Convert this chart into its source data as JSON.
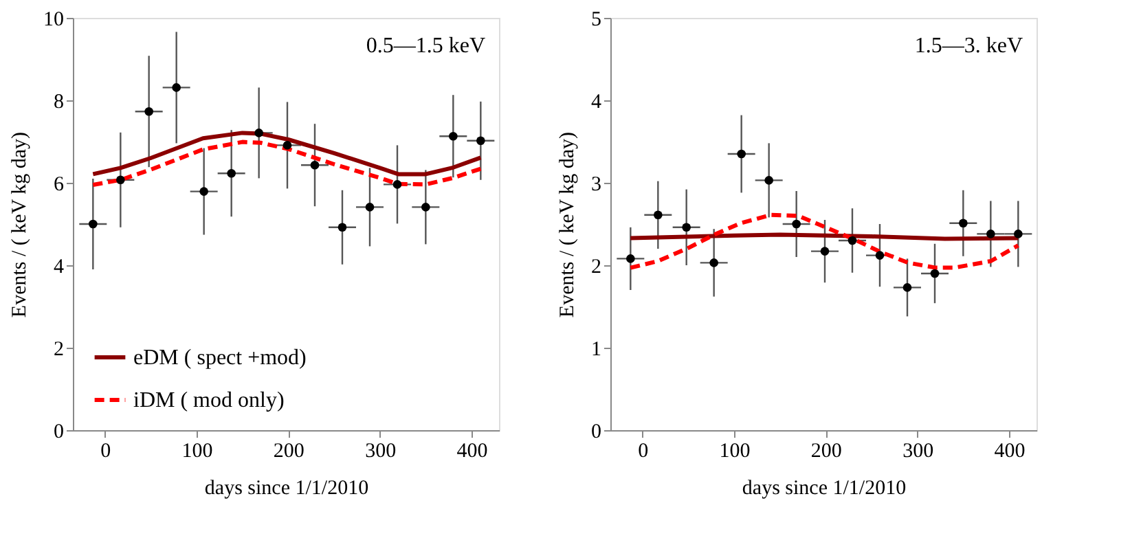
{
  "chart_data": [
    {
      "type": "scatter",
      "xlabel": "days since 1/1/2010",
      "ylabel": "Events / ( keV kg day)",
      "annotations": [
        "0.5—1.5 keV"
      ],
      "xlim": [
        -35,
        430
      ],
      "xticks": [
        0,
        100,
        200,
        300,
        400
      ],
      "ylim": [
        0,
        10
      ],
      "yticks": [
        0,
        2,
        4,
        6,
        8,
        10
      ],
      "grid": false,
      "legend": "bottom left",
      "x": [
        -13,
        17,
        48,
        78,
        108,
        138,
        168,
        199,
        229,
        259,
        289,
        319,
        350,
        380,
        410
      ],
      "series": [
        {
          "marker": "circle",
          "color": "#000000",
          "values": [
            5.0,
            6.07,
            7.73,
            8.31,
            5.79,
            6.23,
            7.21,
            6.91,
            6.43,
            4.92,
            5.41,
            5.96,
            5.41,
            7.13,
            7.02
          ],
          "errors": [
            1.1,
            1.15,
            1.35,
            1.35,
            1.05,
            1.05,
            1.1,
            1.05,
            1.0,
            0.9,
            0.95,
            0.95,
            0.9,
            1.0,
            0.95
          ],
          "xerrors": [
            15,
            15,
            15,
            15,
            15,
            15,
            15,
            15,
            15,
            15,
            15,
            15,
            15,
            15,
            15
          ]
        },
        {
          "type": "line",
          "name": "eDM ( spect +mod)",
          "color": "#8b0000",
          "line_style": "solid",
          "x": [
            -13,
            17,
            50,
            107,
            150,
            170,
            200,
            250,
            300,
            320,
            350,
            380,
            410
          ],
          "values": [
            6.21,
            6.36,
            6.6,
            7.08,
            7.21,
            7.19,
            7.05,
            6.72,
            6.36,
            6.21,
            6.21,
            6.37,
            6.61
          ]
        },
        {
          "type": "line",
          "name": "iDM ( mod only)",
          "color": "#ff0000",
          "line_style": "dashed",
          "x": [
            -13,
            17,
            50,
            107,
            150,
            170,
            200,
            250,
            300,
            320,
            350,
            380,
            410
          ],
          "values": [
            5.95,
            6.07,
            6.32,
            6.81,
            6.99,
            6.97,
            6.82,
            6.45,
            6.12,
            5.97,
            5.96,
            6.12,
            6.34
          ]
        }
      ]
    },
    {
      "type": "scatter",
      "xlabel": "days since 1/1/2010",
      "ylabel": "Events / ( keV kg day)",
      "annotations": [
        "1.5—3. keV"
      ],
      "xlim": [
        -35,
        430
      ],
      "xticks": [
        0,
        100,
        200,
        300,
        400
      ],
      "ylim": [
        0,
        5
      ],
      "yticks": [
        0,
        1,
        2,
        3,
        4,
        5
      ],
      "grid": false,
      "x": [
        -13,
        17,
        48,
        78,
        108,
        138,
        168,
        199,
        229,
        259,
        289,
        319,
        350,
        380,
        410
      ],
      "series": [
        {
          "marker": "circle",
          "color": "#000000",
          "values": [
            2.08,
            2.61,
            2.46,
            2.03,
            3.35,
            3.03,
            2.5,
            2.17,
            2.3,
            2.12,
            1.73,
            1.9,
            2.51,
            2.38,
            2.38
          ],
          "errors": [
            0.38,
            0.41,
            0.46,
            0.41,
            0.47,
            0.45,
            0.4,
            0.38,
            0.39,
            0.38,
            0.35,
            0.36,
            0.4,
            0.4,
            0.4
          ],
          "xerrors": [
            15,
            15,
            15,
            15,
            15,
            15,
            15,
            15,
            15,
            15,
            15,
            15,
            15,
            15,
            15
          ]
        },
        {
          "type": "line",
          "color": "#8b0000",
          "line_style": "solid",
          "x": [
            -13,
            100,
            150,
            250,
            330,
            410
          ],
          "values": [
            2.33,
            2.36,
            2.37,
            2.35,
            2.32,
            2.33
          ]
        },
        {
          "type": "line",
          "color": "#ff0000",
          "line_style": "dashed",
          "x": [
            -13,
            17,
            50,
            80,
            107,
            140,
            170,
            200,
            230,
            260,
            290,
            320,
            340,
            380,
            410
          ],
          "values": [
            1.97,
            2.05,
            2.21,
            2.38,
            2.51,
            2.61,
            2.6,
            2.46,
            2.32,
            2.16,
            2.03,
            1.97,
            1.97,
            2.05,
            2.24
          ]
        }
      ]
    }
  ]
}
